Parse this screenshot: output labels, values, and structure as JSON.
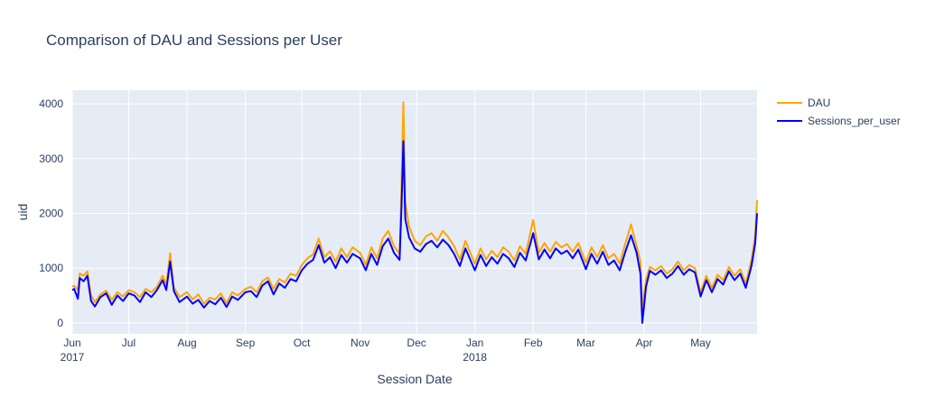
{
  "chart_data": {
    "type": "line",
    "title": "Comparison of DAU and Sessions per User",
    "xlabel": "Session Date",
    "ylabel": "uid",
    "x_range": [
      "2017-06-01",
      "2018-05-31"
    ],
    "ylim": [
      -200,
      4250
    ],
    "y_ticks": [
      0,
      1000,
      2000,
      3000,
      4000
    ],
    "x_ticks": [
      {
        "date": "2017-06-01",
        "label": "Jun",
        "sublabel": "2017"
      },
      {
        "date": "2017-07-01",
        "label": "Jul",
        "sublabel": ""
      },
      {
        "date": "2017-08-01",
        "label": "Aug",
        "sublabel": ""
      },
      {
        "date": "2017-09-01",
        "label": "Sep",
        "sublabel": ""
      },
      {
        "date": "2017-10-01",
        "label": "Oct",
        "sublabel": ""
      },
      {
        "date": "2017-11-01",
        "label": "Nov",
        "sublabel": ""
      },
      {
        "date": "2017-12-01",
        "label": "Dec",
        "sublabel": ""
      },
      {
        "date": "2018-01-01",
        "label": "Jan",
        "sublabel": "2018"
      },
      {
        "date": "2018-02-01",
        "label": "Feb",
        "sublabel": ""
      },
      {
        "date": "2018-03-01",
        "label": "Mar",
        "sublabel": ""
      },
      {
        "date": "2018-04-01",
        "label": "Apr",
        "sublabel": ""
      },
      {
        "date": "2018-05-01",
        "label": "May",
        "sublabel": ""
      }
    ],
    "grid": true,
    "legend_position": "top-right",
    "series": [
      {
        "name": "DAU",
        "color": "#FFA500",
        "points": [
          [
            "2017-06-01",
            660
          ],
          [
            "2017-06-02",
            680
          ],
          [
            "2017-06-04",
            600
          ],
          [
            "2017-06-05",
            900
          ],
          [
            "2017-06-07",
            860
          ],
          [
            "2017-06-09",
            940
          ],
          [
            "2017-06-11",
            500
          ],
          [
            "2017-06-13",
            380
          ],
          [
            "2017-06-16",
            520
          ],
          [
            "2017-06-19",
            590
          ],
          [
            "2017-06-22",
            420
          ],
          [
            "2017-06-25",
            560
          ],
          [
            "2017-06-28",
            480
          ],
          [
            "2017-07-01",
            600
          ],
          [
            "2017-07-04",
            560
          ],
          [
            "2017-07-07",
            470
          ],
          [
            "2017-07-10",
            620
          ],
          [
            "2017-07-13",
            560
          ],
          [
            "2017-07-16",
            660
          ],
          [
            "2017-07-19",
            860
          ],
          [
            "2017-07-21",
            700
          ],
          [
            "2017-07-23",
            1270
          ],
          [
            "2017-07-25",
            650
          ],
          [
            "2017-07-28",
            470
          ],
          [
            "2017-08-01",
            560
          ],
          [
            "2017-08-04",
            430
          ],
          [
            "2017-08-07",
            520
          ],
          [
            "2017-08-10",
            350
          ],
          [
            "2017-08-13",
            460
          ],
          [
            "2017-08-16",
            430
          ],
          [
            "2017-08-19",
            540
          ],
          [
            "2017-08-22",
            360
          ],
          [
            "2017-08-25",
            560
          ],
          [
            "2017-08-28",
            500
          ],
          [
            "2017-09-01",
            620
          ],
          [
            "2017-09-04",
            660
          ],
          [
            "2017-09-07",
            560
          ],
          [
            "2017-09-10",
            760
          ],
          [
            "2017-09-13",
            830
          ],
          [
            "2017-09-16",
            620
          ],
          [
            "2017-09-19",
            800
          ],
          [
            "2017-09-22",
            740
          ],
          [
            "2017-09-25",
            900
          ],
          [
            "2017-09-28",
            860
          ],
          [
            "2017-10-01",
            1060
          ],
          [
            "2017-10-04",
            1180
          ],
          [
            "2017-10-07",
            1250
          ],
          [
            "2017-10-10",
            1540
          ],
          [
            "2017-10-13",
            1200
          ],
          [
            "2017-10-16",
            1310
          ],
          [
            "2017-10-19",
            1120
          ],
          [
            "2017-10-22",
            1360
          ],
          [
            "2017-10-25",
            1200
          ],
          [
            "2017-10-28",
            1380
          ],
          [
            "2017-11-01",
            1280
          ],
          [
            "2017-11-04",
            1060
          ],
          [
            "2017-11-07",
            1380
          ],
          [
            "2017-11-10",
            1180
          ],
          [
            "2017-11-13",
            1540
          ],
          [
            "2017-11-16",
            1680
          ],
          [
            "2017-11-19",
            1400
          ],
          [
            "2017-11-22",
            1260
          ],
          [
            "2017-11-23",
            2500
          ],
          [
            "2017-11-24",
            4030
          ],
          [
            "2017-11-25",
            2200
          ],
          [
            "2017-11-27",
            1760
          ],
          [
            "2017-11-30",
            1500
          ],
          [
            "2017-12-03",
            1420
          ],
          [
            "2017-12-06",
            1580
          ],
          [
            "2017-12-09",
            1640
          ],
          [
            "2017-12-12",
            1500
          ],
          [
            "2017-12-15",
            1680
          ],
          [
            "2017-12-18",
            1560
          ],
          [
            "2017-12-21",
            1400
          ],
          [
            "2017-12-24",
            1160
          ],
          [
            "2017-12-27",
            1500
          ],
          [
            "2018-01-01",
            1080
          ],
          [
            "2018-01-04",
            1360
          ],
          [
            "2018-01-07",
            1160
          ],
          [
            "2018-01-10",
            1320
          ],
          [
            "2018-01-13",
            1200
          ],
          [
            "2018-01-16",
            1380
          ],
          [
            "2018-01-19",
            1300
          ],
          [
            "2018-01-22",
            1140
          ],
          [
            "2018-01-25",
            1400
          ],
          [
            "2018-01-28",
            1260
          ],
          [
            "2018-02-01",
            1880
          ],
          [
            "2018-02-04",
            1280
          ],
          [
            "2018-02-07",
            1460
          ],
          [
            "2018-02-10",
            1300
          ],
          [
            "2018-02-13",
            1480
          ],
          [
            "2018-02-16",
            1380
          ],
          [
            "2018-02-19",
            1440
          ],
          [
            "2018-02-22",
            1300
          ],
          [
            "2018-02-25",
            1460
          ],
          [
            "2018-03-01",
            1100
          ],
          [
            "2018-03-04",
            1380
          ],
          [
            "2018-03-07",
            1200
          ],
          [
            "2018-03-10",
            1420
          ],
          [
            "2018-03-13",
            1180
          ],
          [
            "2018-03-16",
            1260
          ],
          [
            "2018-03-19",
            1080
          ],
          [
            "2018-03-22",
            1450
          ],
          [
            "2018-03-25",
            1800
          ],
          [
            "2018-03-28",
            1400
          ],
          [
            "2018-03-30",
            1120
          ],
          [
            "2018-03-31",
            250
          ],
          [
            "2018-04-02",
            800
          ],
          [
            "2018-04-04",
            1020
          ],
          [
            "2018-04-07",
            960
          ],
          [
            "2018-04-10",
            1040
          ],
          [
            "2018-04-13",
            900
          ],
          [
            "2018-04-16",
            980
          ],
          [
            "2018-04-19",
            1120
          ],
          [
            "2018-04-22",
            960
          ],
          [
            "2018-04-25",
            1060
          ],
          [
            "2018-04-28",
            1000
          ],
          [
            "2018-05-01",
            560
          ],
          [
            "2018-05-04",
            860
          ],
          [
            "2018-05-07",
            640
          ],
          [
            "2018-05-10",
            880
          ],
          [
            "2018-05-13",
            780
          ],
          [
            "2018-05-16",
            1020
          ],
          [
            "2018-05-19",
            860
          ],
          [
            "2018-05-22",
            980
          ],
          [
            "2018-05-25",
            720
          ],
          [
            "2018-05-28",
            1150
          ],
          [
            "2018-05-30",
            1600
          ],
          [
            "2018-05-31",
            2240
          ]
        ]
      },
      {
        "name": "Sessions_per_user",
        "color": "#0000FF",
        "points": [
          [
            "2017-06-01",
            600
          ],
          [
            "2017-06-02",
            620
          ],
          [
            "2017-06-04",
            440
          ],
          [
            "2017-06-05",
            820
          ],
          [
            "2017-06-07",
            760
          ],
          [
            "2017-06-09",
            860
          ],
          [
            "2017-06-11",
            400
          ],
          [
            "2017-06-13",
            300
          ],
          [
            "2017-06-16",
            470
          ],
          [
            "2017-06-19",
            540
          ],
          [
            "2017-06-22",
            330
          ],
          [
            "2017-06-25",
            500
          ],
          [
            "2017-06-28",
            400
          ],
          [
            "2017-07-01",
            540
          ],
          [
            "2017-07-04",
            500
          ],
          [
            "2017-07-07",
            380
          ],
          [
            "2017-07-10",
            560
          ],
          [
            "2017-07-13",
            470
          ],
          [
            "2017-07-16",
            600
          ],
          [
            "2017-07-19",
            780
          ],
          [
            "2017-07-21",
            600
          ],
          [
            "2017-07-23",
            1120
          ],
          [
            "2017-07-25",
            580
          ],
          [
            "2017-07-28",
            380
          ],
          [
            "2017-08-01",
            480
          ],
          [
            "2017-08-04",
            350
          ],
          [
            "2017-08-07",
            420
          ],
          [
            "2017-08-10",
            280
          ],
          [
            "2017-08-13",
            400
          ],
          [
            "2017-08-16",
            340
          ],
          [
            "2017-08-19",
            460
          ],
          [
            "2017-08-22",
            290
          ],
          [
            "2017-08-25",
            480
          ],
          [
            "2017-08-28",
            420
          ],
          [
            "2017-09-01",
            560
          ],
          [
            "2017-09-04",
            580
          ],
          [
            "2017-09-07",
            470
          ],
          [
            "2017-09-10",
            680
          ],
          [
            "2017-09-13",
            760
          ],
          [
            "2017-09-16",
            520
          ],
          [
            "2017-09-19",
            720
          ],
          [
            "2017-09-22",
            640
          ],
          [
            "2017-09-25",
            800
          ],
          [
            "2017-09-28",
            760
          ],
          [
            "2017-10-01",
            960
          ],
          [
            "2017-10-04",
            1080
          ],
          [
            "2017-10-07",
            1150
          ],
          [
            "2017-10-10",
            1420
          ],
          [
            "2017-10-13",
            1100
          ],
          [
            "2017-10-16",
            1200
          ],
          [
            "2017-10-19",
            1000
          ],
          [
            "2017-10-22",
            1240
          ],
          [
            "2017-10-25",
            1100
          ],
          [
            "2017-10-28",
            1260
          ],
          [
            "2017-11-01",
            1180
          ],
          [
            "2017-11-04",
            960
          ],
          [
            "2017-11-07",
            1260
          ],
          [
            "2017-11-10",
            1060
          ],
          [
            "2017-11-13",
            1400
          ],
          [
            "2017-11-16",
            1540
          ],
          [
            "2017-11-19",
            1280
          ],
          [
            "2017-11-22",
            1150
          ],
          [
            "2017-11-23",
            2100
          ],
          [
            "2017-11-24",
            3320
          ],
          [
            "2017-11-25",
            1900
          ],
          [
            "2017-11-27",
            1560
          ],
          [
            "2017-11-30",
            1360
          ],
          [
            "2017-12-03",
            1300
          ],
          [
            "2017-12-06",
            1440
          ],
          [
            "2017-12-09",
            1500
          ],
          [
            "2017-12-12",
            1380
          ],
          [
            "2017-12-15",
            1520
          ],
          [
            "2017-12-18",
            1420
          ],
          [
            "2017-12-21",
            1260
          ],
          [
            "2017-12-24",
            1040
          ],
          [
            "2017-12-27",
            1360
          ],
          [
            "2018-01-01",
            960
          ],
          [
            "2018-01-04",
            1240
          ],
          [
            "2018-01-07",
            1040
          ],
          [
            "2018-01-10",
            1200
          ],
          [
            "2018-01-13",
            1080
          ],
          [
            "2018-01-16",
            1260
          ],
          [
            "2018-01-19",
            1180
          ],
          [
            "2018-01-22",
            1020
          ],
          [
            "2018-01-25",
            1280
          ],
          [
            "2018-01-28",
            1140
          ],
          [
            "2018-02-01",
            1640
          ],
          [
            "2018-02-04",
            1160
          ],
          [
            "2018-02-07",
            1340
          ],
          [
            "2018-02-10",
            1180
          ],
          [
            "2018-02-13",
            1360
          ],
          [
            "2018-02-16",
            1260
          ],
          [
            "2018-02-19",
            1320
          ],
          [
            "2018-02-22",
            1180
          ],
          [
            "2018-02-25",
            1340
          ],
          [
            "2018-03-01",
            980
          ],
          [
            "2018-03-04",
            1260
          ],
          [
            "2018-03-07",
            1080
          ],
          [
            "2018-03-10",
            1300
          ],
          [
            "2018-03-13",
            1060
          ],
          [
            "2018-03-16",
            1140
          ],
          [
            "2018-03-19",
            960
          ],
          [
            "2018-03-22",
            1300
          ],
          [
            "2018-03-25",
            1600
          ],
          [
            "2018-03-28",
            1280
          ],
          [
            "2018-03-30",
            900
          ],
          [
            "2018-03-31",
            0
          ],
          [
            "2018-04-02",
            660
          ],
          [
            "2018-04-04",
            950
          ],
          [
            "2018-04-07",
            880
          ],
          [
            "2018-04-10",
            960
          ],
          [
            "2018-04-13",
            820
          ],
          [
            "2018-04-16",
            900
          ],
          [
            "2018-04-19",
            1040
          ],
          [
            "2018-04-22",
            880
          ],
          [
            "2018-04-25",
            980
          ],
          [
            "2018-04-28",
            920
          ],
          [
            "2018-05-01",
            480
          ],
          [
            "2018-05-04",
            780
          ],
          [
            "2018-05-07",
            560
          ],
          [
            "2018-05-10",
            800
          ],
          [
            "2018-05-13",
            700
          ],
          [
            "2018-05-16",
            940
          ],
          [
            "2018-05-19",
            780
          ],
          [
            "2018-05-22",
            900
          ],
          [
            "2018-05-25",
            640
          ],
          [
            "2018-05-28",
            1040
          ],
          [
            "2018-05-30",
            1450
          ],
          [
            "2018-05-31",
            2000
          ]
        ]
      }
    ]
  }
}
